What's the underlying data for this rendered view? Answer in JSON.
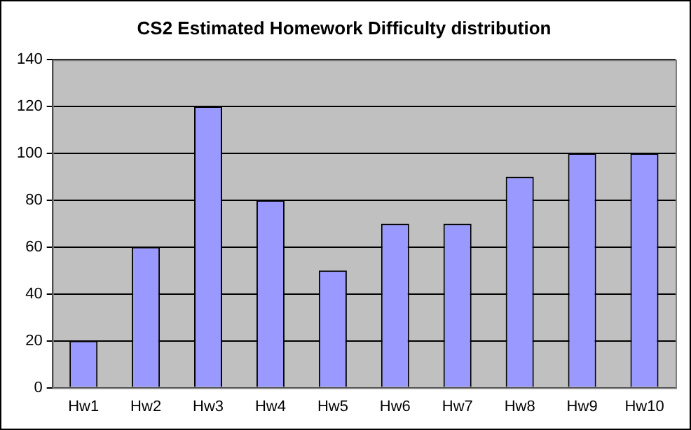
{
  "chart_data": {
    "type": "bar",
    "title": "CS2 Estimated Homework Difficulty distribution",
    "categories": [
      "Hw1",
      "Hw2",
      "Hw3",
      "Hw4",
      "Hw5",
      "Hw6",
      "Hw7",
      "Hw8",
      "Hw9",
      "Hw10"
    ],
    "values": [
      20,
      60,
      120,
      80,
      50,
      70,
      70,
      90,
      100,
      100
    ],
    "color": "#9999ff",
    "ylim": [
      0,
      140
    ],
    "yticks": [
      0,
      20,
      40,
      60,
      80,
      100,
      120,
      140
    ],
    "grid": "y"
  }
}
